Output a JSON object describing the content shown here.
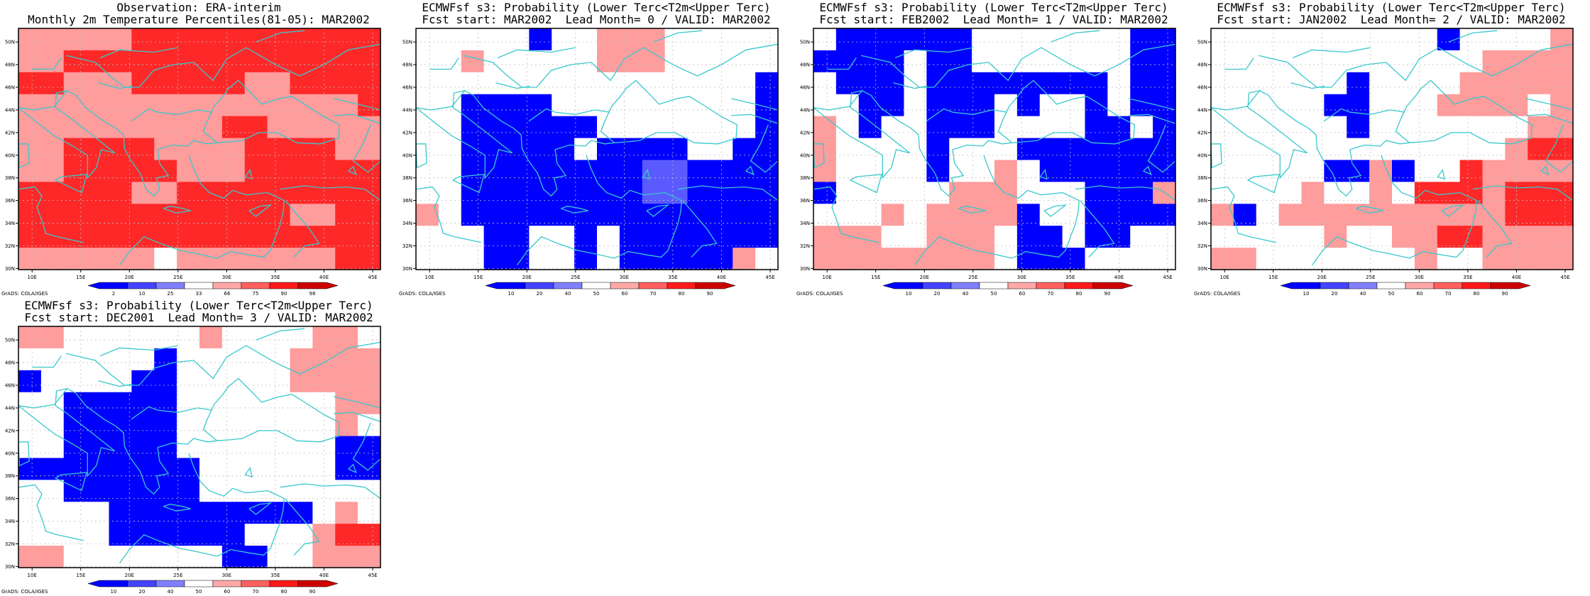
{
  "axes": {
    "lon_labels": [
      "10E",
      "15E",
      "20E",
      "25E",
      "30E",
      "35E",
      "40E",
      "45E"
    ],
    "lat_labels": [
      "30N",
      "32N",
      "34N",
      "36N",
      "38N",
      "40N",
      "42N",
      "44N",
      "46N",
      "48N",
      "50N"
    ]
  },
  "colors": {
    "coast": "#38c8cc",
    "grid": "#c0c0c0",
    "scale": [
      "#0000ff",
      "#4444ff",
      "#8080ff",
      "#ffffff",
      "#ffa8a8",
      "#ff6060",
      "#ff1a1a",
      "#cc0000"
    ]
  },
  "credit": "GrADS: COLA/IGES",
  "panels": [
    {
      "title1": "Observation: ERA-interim",
      "title2": "Monthly 2m Temperature Percentiles(81-05): MAR2002",
      "legend_labels": [
        "2",
        "10",
        "25",
        "33",
        "66",
        "75",
        "90",
        "98"
      ],
      "grid": [
        "PPPPPRRRRRRRRRRR",
        "PPRRRRRRRRRRRRRR",
        "RRPPPRRRRRPPRRRR",
        "PPPPPPPPPPPPPPPR",
        "PPPPPPPPPRRPPPPP",
        "PPRRRRPPPPRRRRPP",
        "PPRRRRRPPPRRRRRR",
        "RRRRRPPRRRRRRRRR",
        "RRRRRRRRRRRRPPRR",
        "RRRRRRRRRRRRRRRR",
        "PPPPPPWPPPPPPPRR"
      ]
    },
    {
      "title1": "ECMWFsf s3: Probability (Lower Terc<T2m<Upper Terc)",
      "title2": "Fcst start: MAR2002  Lead Month= 0 / VALID: MAR2002",
      "legend_labels": [
        "10",
        "20",
        "40",
        "50",
        "60",
        "70",
        "80",
        "90"
      ],
      "grid": [
        "WWWWWBWWPPPWWWWW",
        "WWPWWWWWPPPWWWWW",
        "WWWWWWWWWWWWWWWB",
        "WWBBBBWWWWWWWWWB",
        "WWBBBBBBWWWWWWWB",
        "WWBBBBBWBBBBWWBB",
        "WWBBBBBBBBLLBBBB",
        "WWBBBBBBBBLLBBBB",
        "PWBBBBBBBBBBBBBB",
        "WWWBBWWBWBBBBBBB",
        "WWWBBWWBWBBBBBPW"
      ]
    },
    {
      "title1": "ECMWFsf s3: Probability (Lower Terc<T2m<Upper Terc)",
      "title2": "Fcst start: FEB2002  Lead Month= 1 / VALID: MAR2002",
      "legend_labels": [
        "10",
        "20",
        "40",
        "50",
        "60",
        "70",
        "80",
        "90"
      ],
      "grid": [
        "WBBBBBBWWWWWWWBB",
        "BBBBWBBWWWWWWWBB",
        "WBBBWBBBBBBBBWBB",
        "WWBBWBBBWBWWBWBB",
        "PWBWWBBBWWWWBBWB",
        "PWWWWBWWWBBBBBBB",
        "PWWWWBWWPWBBBBBB",
        "BWWWWWPPPWWWBBBP",
        "WWWPWPPPPBWWBBBB",
        "PPPWWPPPWBBWBBWW",
        "PPPPPPPPWBBBWWWW"
      ]
    },
    {
      "title1": "ECMWFsf s3: Probability (Lower Terc<T2m<Upper Terc)",
      "title2": "Fcst start: JAN2002  Lead Month= 2 / VALID: MAR2002",
      "legend_labels": [
        "10",
        "20",
        "40",
        "50",
        "60",
        "70",
        "80",
        "90"
      ],
      "grid": [
        "WWWWWWWWWWBWWWWP",
        "WWWWWWWWWWWWPPPP",
        "WWWWWWBWWWWPPPPP",
        "WWWWWBBWWWPPPPWP",
        "WWWWWWBWWWWWWWPP",
        "WWWWWWWWWWWWWPRR",
        "WWWWWBBPBWWRPPPP",
        "WWWWPWWPWRRRPRRR",
        "PBWPPPPPPPPPPRRR",
        "WWWWWPWWPPRRPPPP",
        "PPWWWWWWWPWWPPPP"
      ]
    },
    {
      "title1": "ECMWFsf s3: Probability (Lower Terc<T2m<Upper Terc)",
      "title2": "Fcst start: DEC2001  Lead Month= 3 / VALID: MAR2002",
      "legend_labels": [
        "10",
        "20",
        "40",
        "50",
        "60",
        "70",
        "80",
        "90"
      ],
      "grid": [
        "PPWWWWWWPWWWWPPW",
        "WWWWWWBWWWWWPPPP",
        "BWWWWBBWWWWWPPPP",
        "WWBBBBBWWWWWWWPP",
        "WWBBBBBWWWWWWWPW",
        "WWBBBBBWWWWWWWBB",
        "BBBBBBBBWWWWWWBB",
        "WWBBBBBBWWWWWWWW",
        "WWWWBBBBBBBBBWPW",
        "WWWWBBBBBBWWWPRR",
        "PPWWWWWWWBBWWPPP"
      ]
    }
  ]
}
